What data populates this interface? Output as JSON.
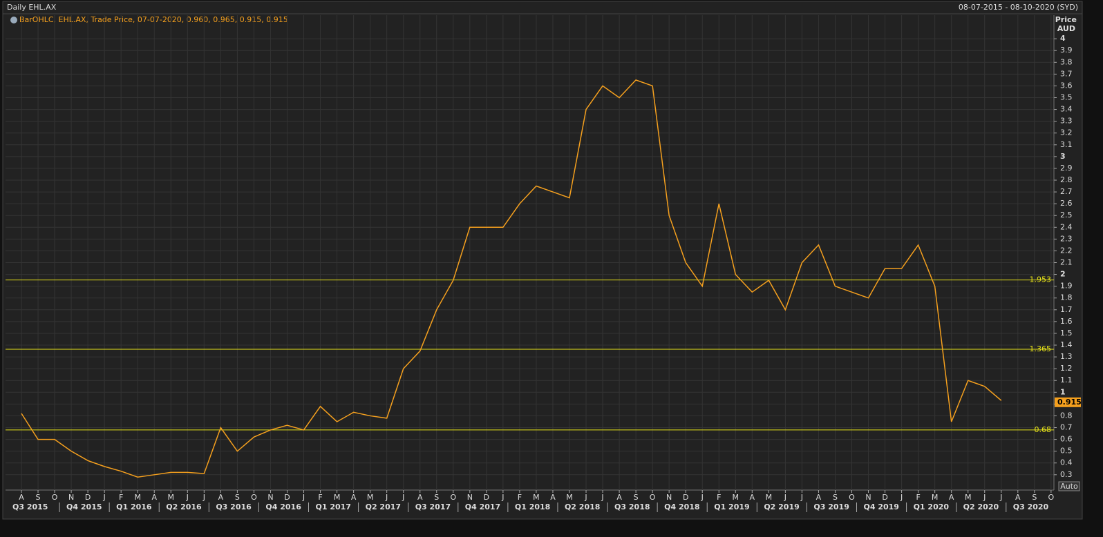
{
  "header": {
    "title": "Daily EHL.AX",
    "range": "08-07-2015 - 08-10-2020 (SYD)",
    "auto": "Auto"
  },
  "chart_data": {
    "type": "line",
    "legend_text": "BarOHLC, EHL.AX, Trade Price, 07-07-2020, 0.960, 0.965, 0.915, 0.915",
    "y_label": [
      "Price",
      "AUD"
    ],
    "categories": [
      "A",
      "S",
      "O",
      "N",
      "D",
      "J",
      "F",
      "M",
      "A",
      "M",
      "J",
      "J",
      "A",
      "S",
      "O",
      "N",
      "D",
      "J",
      "F",
      "M",
      "A",
      "M",
      "J",
      "J",
      "A",
      "S",
      "O",
      "N",
      "D",
      "J",
      "F",
      "M",
      "A",
      "M",
      "J",
      "J",
      "A",
      "S",
      "O",
      "N",
      "D",
      "J",
      "F",
      "M",
      "A",
      "M",
      "J",
      "J",
      "A",
      "S",
      "O",
      "N",
      "D",
      "J",
      "F",
      "M",
      "A",
      "M",
      "J",
      "J",
      "A",
      "S",
      "O"
    ],
    "quarters": [
      "Q3 2015",
      "Q4 2015",
      "Q1 2016",
      "Q2 2016",
      "Q3 2016",
      "Q4 2016",
      "Q1 2017",
      "Q2 2017",
      "Q3 2017",
      "Q4 2017",
      "Q1 2018",
      "Q2 2018",
      "Q3 2018",
      "Q4 2018",
      "Q1 2019",
      "Q2 2019",
      "Q3 2019",
      "Q4 2019",
      "Q1 2020",
      "Q2 2020",
      "Q3 2020"
    ],
    "series": [
      {
        "color": "#f5a01e",
        "values": [
          0.82,
          0.6,
          0.6,
          0.5,
          0.42,
          0.37,
          0.33,
          0.28,
          0.3,
          0.32,
          0.32,
          0.31,
          0.7,
          0.5,
          0.62,
          0.68,
          0.72,
          0.68,
          0.88,
          0.75,
          0.83,
          0.8,
          0.78,
          1.2,
          1.35,
          1.7,
          1.95,
          2.4,
          2.4,
          2.4,
          2.6,
          2.75,
          2.7,
          2.65,
          3.4,
          3.6,
          3.5,
          3.65,
          3.6,
          2.5,
          2.1,
          1.9,
          2.6,
          2.0,
          1.85,
          1.95,
          1.7,
          2.1,
          2.25,
          1.9,
          1.85,
          1.8,
          2.05,
          2.05,
          2.25,
          1.9,
          0.75,
          1.1,
          1.05,
          0.93,
          null,
          null,
          null
        ]
      }
    ],
    "levels": {
      "color": "#e6e21a",
      "values": [
        1.953,
        1.365,
        0.68
      ]
    },
    "last_price": 0.915,
    "ylim": [
      0.17,
      4.2
    ],
    "yticks": [
      0.3,
      0.4,
      0.5,
      0.6,
      0.7,
      0.8,
      0.9,
      1,
      1.1,
      1.2,
      1.3,
      1.4,
      1.5,
      1.6,
      1.7,
      1.8,
      1.9,
      2,
      2.1,
      2.2,
      2.3,
      2.4,
      2.5,
      2.6,
      2.7,
      2.8,
      2.9,
      3,
      3.1,
      3.2,
      3.3,
      3.4,
      3.5,
      3.6,
      3.7,
      3.8,
      3.9,
      4
    ],
    "grid": true
  }
}
